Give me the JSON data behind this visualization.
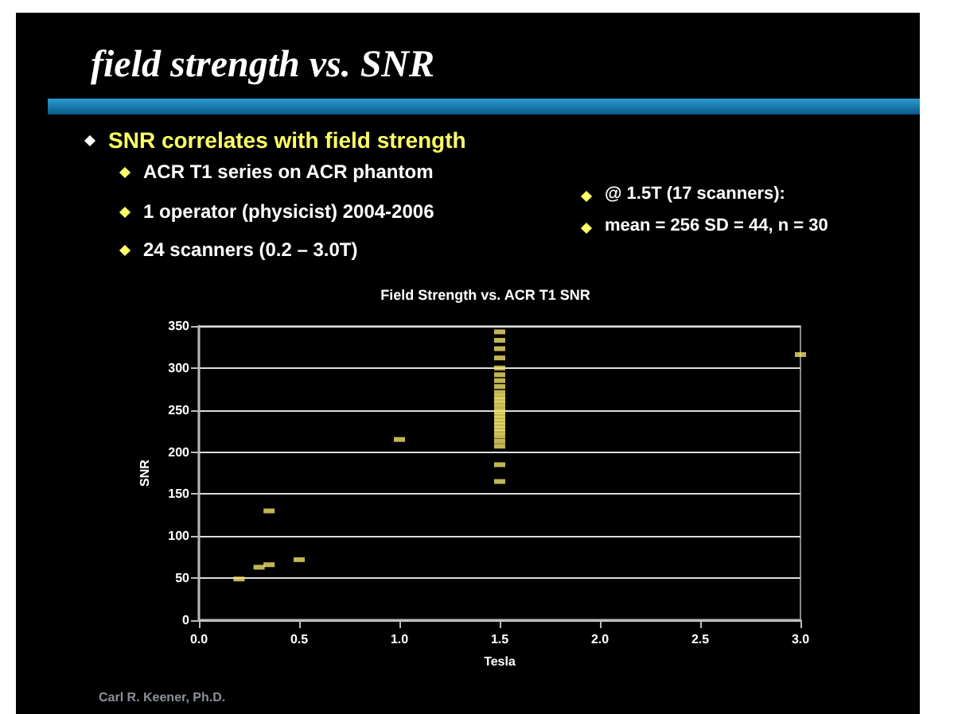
{
  "chart_data": {
    "type": "scatter",
    "title": "Field Strength vs. ACR T1 SNR",
    "xlabel": "Tesla",
    "ylabel": "SNR",
    "annotations": [
      "field strength vs. SNR",
      "SNR correlates with field strength",
      "ACR T1 series on ACR phantom",
      "1 operator (physicist) 2004-2006",
      "24 scanners (0.2 – 3.0T)",
      "@ 1.5T (17 scanners):",
      "mean = 256  SD = 44, n = 30",
      "Carl R. Keener, Ph.D."
    ],
    "x": [
      0.2,
      0.3,
      0.35,
      0.35,
      0.5,
      1.0,
      1.5,
      1.5,
      1.5,
      1.5,
      1.5,
      1.5,
      1.5,
      1.5,
      1.5,
      1.5,
      1.5,
      1.5,
      1.5,
      1.5,
      1.5,
      1.5,
      1.5,
      1.5,
      1.5,
      1.5,
      1.5,
      1.5,
      1.5,
      1.5,
      1.5,
      3.0
    ],
    "series": [
      {
        "color": "#f2e36a",
        "values": [
          49,
          63,
          66,
          130,
          72,
          215,
          343,
          333,
          323,
          312,
          300,
          292,
          285,
          278,
          271,
          266,
          262,
          258,
          253,
          248,
          244,
          240,
          236,
          232,
          228,
          224,
          219,
          213,
          207,
          185,
          165,
          316
        ]
      }
    ],
    "xlim": [
      0,
      3
    ],
    "ylim": [
      0,
      350
    ],
    "xticks": [
      {
        "value": 0,
        "label": "0.0"
      },
      {
        "value": 0.5,
        "label": "0.5"
      },
      {
        "value": 1,
        "label": "1.0"
      },
      {
        "value": 1.5,
        "label": "1.5"
      },
      {
        "value": 2,
        "label": "2.0"
      },
      {
        "value": 2.5,
        "label": "2.5"
      },
      {
        "value": 3,
        "label": "3.0"
      }
    ],
    "yticks": [
      0,
      50,
      100,
      150,
      200,
      250,
      300,
      350
    ],
    "grid": "y",
    "marker": "square"
  }
}
